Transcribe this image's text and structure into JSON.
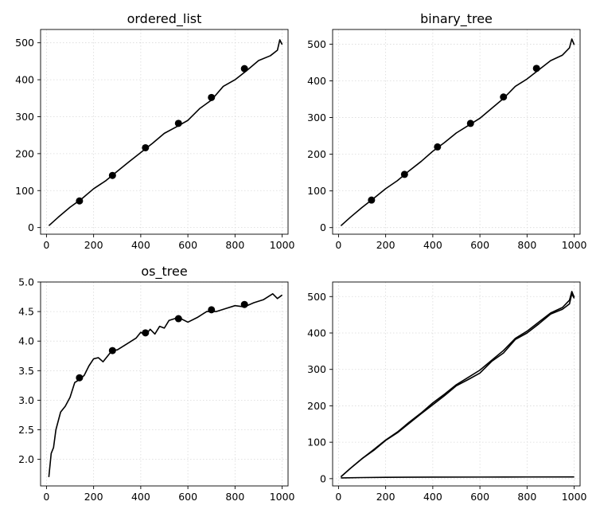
{
  "chart_data": [
    {
      "type": "line",
      "title": "ordered_list",
      "xlabel": "",
      "ylabel": "",
      "xlim": [
        -25,
        1025
      ],
      "ylim": [
        -18,
        536
      ],
      "x_ticks": [
        0,
        200,
        400,
        600,
        800,
        1000
      ],
      "y_ticks": [
        0,
        100,
        200,
        300,
        400,
        500
      ],
      "grid": true,
      "series": [
        {
          "x": [
            10,
            50,
            100,
            150,
            200,
            250,
            300,
            350,
            400,
            450,
            500,
            550,
            600,
            650,
            700,
            750,
            800,
            850,
            900,
            950,
            980,
            990,
            1000
          ],
          "y": [
            5,
            28,
            55,
            78,
            105,
            126,
            152,
            178,
            203,
            228,
            255,
            272,
            290,
            322,
            345,
            382,
            400,
            425,
            452,
            465,
            480,
            508,
            495
          ],
          "markers": {
            "x": [
              140,
              280,
              420,
              560,
              700,
              840
            ],
            "y": [
              72,
              141,
              216,
              282,
              352,
              430
            ]
          }
        }
      ]
    },
    {
      "type": "line",
      "title": "binary_tree",
      "xlabel": "",
      "ylabel": "",
      "xlim": [
        -25,
        1025
      ],
      "ylim": [
        -18,
        540
      ],
      "x_ticks": [
        0,
        200,
        400,
        600,
        800,
        1000
      ],
      "y_ticks": [
        0,
        100,
        200,
        300,
        400,
        500
      ],
      "grid": true,
      "series": [
        {
          "x": [
            10,
            50,
            100,
            150,
            200,
            250,
            300,
            350,
            400,
            450,
            500,
            550,
            600,
            650,
            700,
            750,
            800,
            850,
            900,
            950,
            980,
            990,
            1000
          ],
          "y": [
            5,
            28,
            55,
            80,
            106,
            128,
            155,
            180,
            208,
            232,
            258,
            278,
            298,
            325,
            352,
            385,
            405,
            430,
            455,
            470,
            490,
            514,
            498
          ],
          "markers": {
            "x": [
              140,
              280,
              420,
              560,
              700,
              840
            ],
            "y": [
              75,
              145,
              220,
              284,
              356,
              434
            ]
          }
        }
      ]
    },
    {
      "type": "line",
      "title": "os_tree",
      "xlabel": "",
      "ylabel": "",
      "xlim": [
        -25,
        1025
      ],
      "ylim": [
        1.55,
        5.0
      ],
      "x_ticks": [
        0,
        200,
        400,
        600,
        800,
        1000
      ],
      "y_ticks": [
        2.0,
        2.5,
        3.0,
        3.5,
        4.0,
        4.5,
        5.0
      ],
      "y_tick_labels": [
        "2.0",
        "2.5",
        "3.0",
        "3.5",
        "4.0",
        "4.5",
        "5.0"
      ],
      "grid": true,
      "series": [
        {
          "x": [
            10,
            20,
            30,
            40,
            50,
            60,
            80,
            100,
            120,
            140,
            160,
            180,
            200,
            220,
            240,
            260,
            280,
            300,
            340,
            380,
            400,
            420,
            440,
            460,
            480,
            500,
            520,
            560,
            600,
            640,
            680,
            720,
            760,
            800,
            840,
            880,
            920,
            960,
            980,
            1000
          ],
          "y": [
            1.7,
            2.1,
            2.2,
            2.5,
            2.65,
            2.8,
            2.9,
            3.05,
            3.3,
            3.35,
            3.42,
            3.58,
            3.7,
            3.72,
            3.65,
            3.75,
            3.85,
            3.85,
            3.95,
            4.05,
            4.15,
            4.1,
            4.2,
            4.12,
            4.25,
            4.22,
            4.35,
            4.4,
            4.32,
            4.4,
            4.5,
            4.5,
            4.55,
            4.6,
            4.58,
            4.65,
            4.7,
            4.8,
            4.72,
            4.78
          ]
        }
      ],
      "markers": {
        "x": [
          140,
          280,
          420,
          560,
          700,
          840
        ],
        "y": [
          3.38,
          3.84,
          4.14,
          4.38,
          4.53,
          4.62
        ]
      }
    },
    {
      "type": "line",
      "title": "",
      "xlabel": "",
      "ylabel": "",
      "xlim": [
        -25,
        1025
      ],
      "ylim": [
        -20,
        540
      ],
      "x_ticks": [
        0,
        200,
        400,
        600,
        800,
        1000
      ],
      "y_ticks": [
        0,
        100,
        200,
        300,
        400,
        500
      ],
      "grid": true,
      "series": [
        {
          "x": [
            10,
            50,
            100,
            150,
            200,
            250,
            300,
            350,
            400,
            450,
            500,
            550,
            600,
            650,
            700,
            750,
            800,
            850,
            900,
            950,
            980,
            990,
            1000
          ],
          "y": [
            5,
            28,
            55,
            78,
            105,
            126,
            152,
            178,
            203,
            228,
            255,
            272,
            290,
            322,
            345,
            382,
            400,
            425,
            452,
            465,
            480,
            508,
            495
          ]
        },
        {
          "x": [
            10,
            50,
            100,
            150,
            200,
            250,
            300,
            350,
            400,
            450,
            500,
            550,
            600,
            650,
            700,
            750,
            800,
            850,
            900,
            950,
            980,
            990,
            1000
          ],
          "y": [
            5,
            28,
            55,
            80,
            106,
            128,
            155,
            180,
            208,
            232,
            258,
            278,
            298,
            325,
            352,
            385,
            405,
            430,
            455,
            470,
            490,
            514,
            498
          ]
        },
        {
          "x": [
            10,
            100,
            200,
            400,
            600,
            800,
            1000
          ],
          "y": [
            2,
            3,
            3.7,
            4.15,
            4.35,
            4.6,
            4.78
          ]
        }
      ]
    }
  ]
}
